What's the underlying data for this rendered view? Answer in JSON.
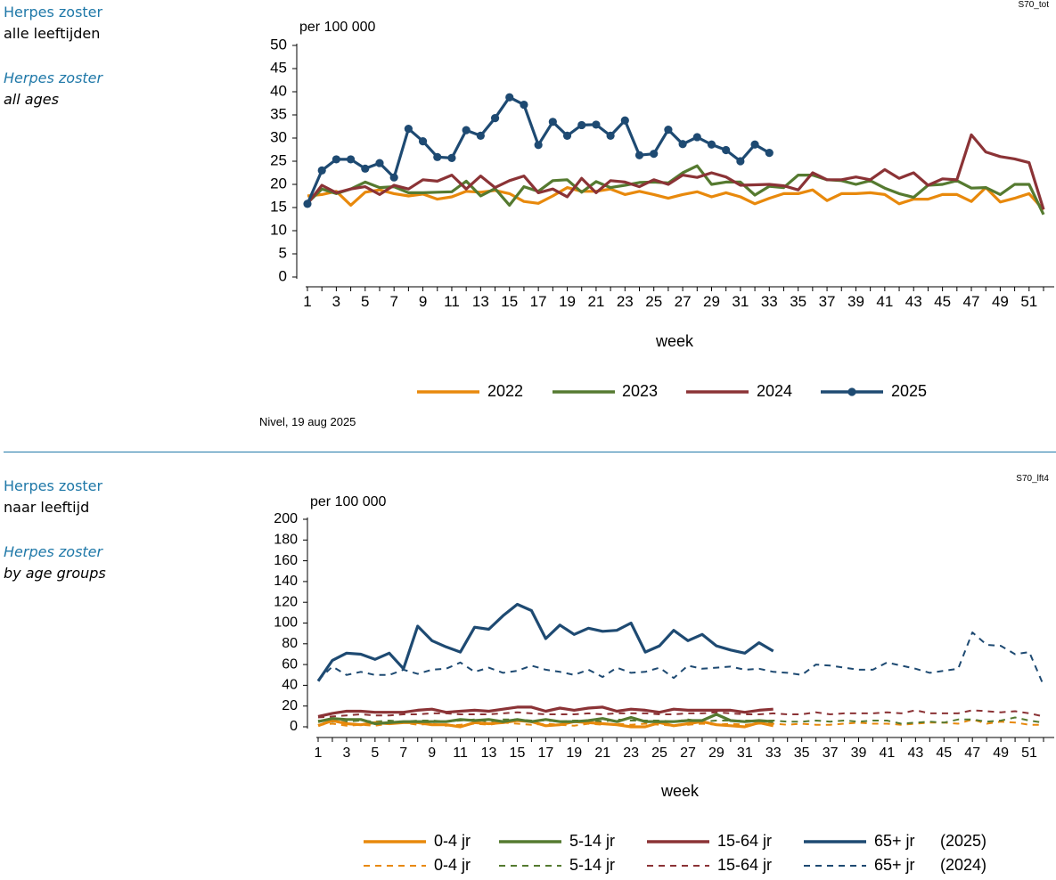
{
  "panel1": {
    "code": "S70_tot",
    "title_nl": "Herpes zoster",
    "subtitle_nl": "alle leeftijden",
    "title_en": "Herpes zoster",
    "subtitle_en": "all ages",
    "source": "Nivel, 19 aug 2025"
  },
  "panel2": {
    "code": "S70_lft4",
    "title_nl": "Herpes zoster",
    "subtitle_nl": "naar leeftijd",
    "title_en": "Herpes zoster",
    "subtitle_en": "by age groups"
  },
  "chart_data": [
    {
      "type": "line",
      "ylabel": "per 100 000",
      "xlabel": "week",
      "xlim": [
        1,
        52
      ],
      "ylim": [
        0,
        50
      ],
      "yticks": [
        0,
        5,
        10,
        15,
        20,
        25,
        30,
        35,
        40,
        45,
        50
      ],
      "xticks": [
        1,
        3,
        5,
        7,
        9,
        11,
        13,
        15,
        17,
        19,
        21,
        23,
        25,
        27,
        29,
        31,
        33,
        35,
        37,
        39,
        41,
        43,
        45,
        47,
        49,
        51
      ],
      "legend_position": "bottom",
      "series": [
        {
          "name": "2022",
          "color": "#e8890c",
          "dash": false,
          "markers": false,
          "values": [
            17.5,
            17.8,
            18.5,
            15.5,
            18.3,
            18.8,
            18.0,
            17.5,
            17.9,
            16.8,
            17.3,
            18.5,
            18.3,
            18.7,
            18.0,
            16.3,
            15.9,
            17.5,
            19.3,
            18.5,
            18.5,
            19.0,
            17.8,
            18.5,
            17.8,
            17.0,
            17.8,
            18.4,
            17.3,
            18.2,
            17.3,
            15.8,
            17.0,
            18.0,
            18.0,
            18.8,
            16.5,
            18.0,
            18.0,
            18.2,
            17.8,
            15.8,
            16.8,
            16.8,
            17.8,
            17.8,
            16.3,
            19.3,
            16.2,
            17.0,
            18.0,
            14.5
          ]
        },
        {
          "name": "2023",
          "color": "#557a30",
          "dash": false,
          "markers": false,
          "values": [
            16.0,
            19.0,
            18.0,
            19.0,
            20.5,
            19.3,
            19.5,
            18.2,
            18.2,
            18.3,
            18.4,
            20.7,
            17.5,
            19.1,
            15.5,
            19.5,
            18.5,
            20.8,
            21.0,
            18.3,
            20.6,
            19.3,
            19.8,
            20.4,
            20.5,
            20.3,
            22.5,
            24.0,
            20.0,
            20.5,
            20.5,
            17.7,
            19.6,
            19.3,
            22.0,
            22.0,
            21.0,
            20.8,
            20.0,
            20.8,
            19.2,
            18.0,
            17.2,
            19.8,
            20.0,
            20.8,
            19.2,
            19.3,
            17.8,
            20.0,
            20.0,
            13.5
          ]
        },
        {
          "name": "2024",
          "color": "#8b3336",
          "dash": false,
          "markers": false,
          "values": [
            15.8,
            19.8,
            18.2,
            19.0,
            19.5,
            17.8,
            19.8,
            19.0,
            21.0,
            20.7,
            22.0,
            19.0,
            21.8,
            19.3,
            20.8,
            21.8,
            18.2,
            19.0,
            17.3,
            21.3,
            18.2,
            20.8,
            20.5,
            19.5,
            21.0,
            20.0,
            22.0,
            21.5,
            22.5,
            21.6,
            19.8,
            19.9,
            20.0,
            19.7,
            18.8,
            22.5,
            21.0,
            21.0,
            21.6,
            21.0,
            23.2,
            21.3,
            22.5,
            19.8,
            21.2,
            21.0,
            30.7,
            27.0,
            26.0,
            25.5,
            24.7,
            14.6
          ]
        },
        {
          "name": "2025",
          "color": "#1e4a72",
          "dash": false,
          "markers": true,
          "values": [
            15.8,
            23.0,
            25.4,
            25.4,
            23.4,
            24.6,
            21.5,
            32.0,
            29.3,
            25.9,
            25.7,
            31.7,
            30.5,
            34.3,
            38.8,
            37.2,
            28.5,
            33.5,
            30.5,
            32.8,
            32.9,
            30.5,
            33.8,
            26.3,
            26.6,
            31.8,
            28.7,
            30.2,
            28.6,
            27.4,
            25.0,
            28.6,
            26.8
          ]
        }
      ]
    },
    {
      "type": "line",
      "ylabel": "per 100 000",
      "xlabel": "week",
      "xlim": [
        1,
        52
      ],
      "ylim": [
        0,
        200
      ],
      "yticks": [
        0,
        20,
        40,
        60,
        80,
        100,
        120,
        140,
        160,
        180,
        200
      ],
      "xticks": [
        1,
        3,
        5,
        7,
        9,
        11,
        13,
        15,
        17,
        19,
        21,
        23,
        25,
        27,
        29,
        31,
        33,
        35,
        37,
        39,
        41,
        43,
        45,
        47,
        49,
        51
      ],
      "legend_position": "bottom",
      "series": [
        {
          "name": "0-4 jr",
          "year": "(2025)",
          "color": "#e8890c",
          "dash": false,
          "values": [
            1,
            6,
            3,
            2,
            4,
            3,
            4,
            4,
            2,
            2,
            0,
            4,
            3,
            4,
            6,
            5,
            1,
            2,
            5,
            4,
            3,
            2,
            0,
            0,
            4,
            1,
            3,
            5,
            2,
            1,
            0,
            4,
            1
          ]
        },
        {
          "name": "5-14 jr",
          "year": "(2025)",
          "color": "#557a30",
          "dash": false,
          "values": [
            5,
            8,
            7,
            7,
            3,
            4,
            5,
            5,
            5,
            5,
            7,
            6,
            7,
            5,
            7,
            5,
            7,
            5,
            5,
            6,
            8,
            5,
            9,
            5,
            5,
            5,
            6,
            6,
            12,
            6,
            5,
            6,
            5
          ]
        },
        {
          "name": "15-64 jr",
          "year": "(2025)",
          "color": "#8b3336",
          "dash": false,
          "values": [
            10,
            13,
            15,
            15,
            14,
            14,
            14,
            16,
            17,
            14,
            15,
            16,
            15,
            17,
            19,
            19,
            15,
            18,
            16,
            18,
            19,
            15,
            17,
            16,
            14,
            17,
            16,
            16,
            16,
            16,
            14,
            16,
            17
          ]
        },
        {
          "name": "65+ jr",
          "year": "(2025)",
          "color": "#1e4a72",
          "dash": false,
          "values": [
            44,
            64,
            71,
            70,
            65,
            71,
            56,
            97,
            83,
            77,
            72,
            96,
            94,
            107,
            118,
            112,
            85,
            98,
            89,
            95,
            92,
            93,
            100,
            72,
            78,
            93,
            83,
            89,
            78,
            74,
            71,
            81,
            73
          ]
        },
        {
          "name": "0-4 jr",
          "year": "(2024)",
          "color": "#e8890c",
          "dash": true,
          "values": [
            2,
            3,
            1,
            2,
            1,
            3,
            4,
            2,
            3,
            1,
            2,
            3,
            2,
            4,
            3,
            2,
            3,
            2,
            1,
            3,
            2,
            3,
            2,
            3,
            2,
            1,
            2,
            3,
            2,
            3,
            2,
            3,
            3,
            2,
            3,
            2,
            2,
            3,
            4,
            3,
            3,
            2,
            3,
            4,
            4,
            3,
            7,
            3,
            5,
            4,
            2,
            2
          ]
        },
        {
          "name": "5-14 jr",
          "year": "(2024)",
          "color": "#557a30",
          "dash": true,
          "values": [
            6,
            5,
            5,
            6,
            5,
            6,
            5,
            6,
            6,
            5,
            6,
            7,
            5,
            7,
            7,
            6,
            6,
            5,
            6,
            6,
            5,
            7,
            6,
            6,
            6,
            5,
            7,
            5,
            6,
            6,
            6,
            6,
            6,
            5,
            5,
            6,
            5,
            6,
            5,
            6,
            6,
            3,
            4,
            5,
            4,
            7,
            7,
            5,
            6,
            9,
            6,
            4
          ]
        },
        {
          "name": "15-64 jr",
          "year": "(2024)",
          "color": "#8b3336",
          "dash": true,
          "values": [
            9,
            10,
            11,
            12,
            11,
            11,
            12,
            12,
            13,
            13,
            12,
            12,
            12,
            13,
            14,
            13,
            12,
            12,
            12,
            13,
            12,
            13,
            13,
            13,
            12,
            12,
            13,
            13,
            14,
            13,
            12,
            12,
            13,
            12,
            12,
            14,
            12,
            13,
            13,
            13,
            14,
            13,
            16,
            13,
            13,
            13,
            16,
            15,
            14,
            15,
            13,
            10
          ]
        },
        {
          "name": "65+ jr",
          "year": "(2024)",
          "color": "#1e4a72",
          "dash": true,
          "values": [
            45,
            58,
            50,
            53,
            50,
            50,
            55,
            51,
            55,
            56,
            62,
            53,
            57,
            52,
            54,
            59,
            55,
            53,
            50,
            55,
            48,
            57,
            52,
            53,
            57,
            47,
            59,
            56,
            57,
            58,
            55,
            56,
            53,
            52,
            50,
            60,
            59,
            57,
            55,
            55,
            62,
            59,
            56,
            52,
            54,
            56,
            91,
            79,
            78,
            70,
            72,
            40
          ]
        }
      ]
    }
  ]
}
